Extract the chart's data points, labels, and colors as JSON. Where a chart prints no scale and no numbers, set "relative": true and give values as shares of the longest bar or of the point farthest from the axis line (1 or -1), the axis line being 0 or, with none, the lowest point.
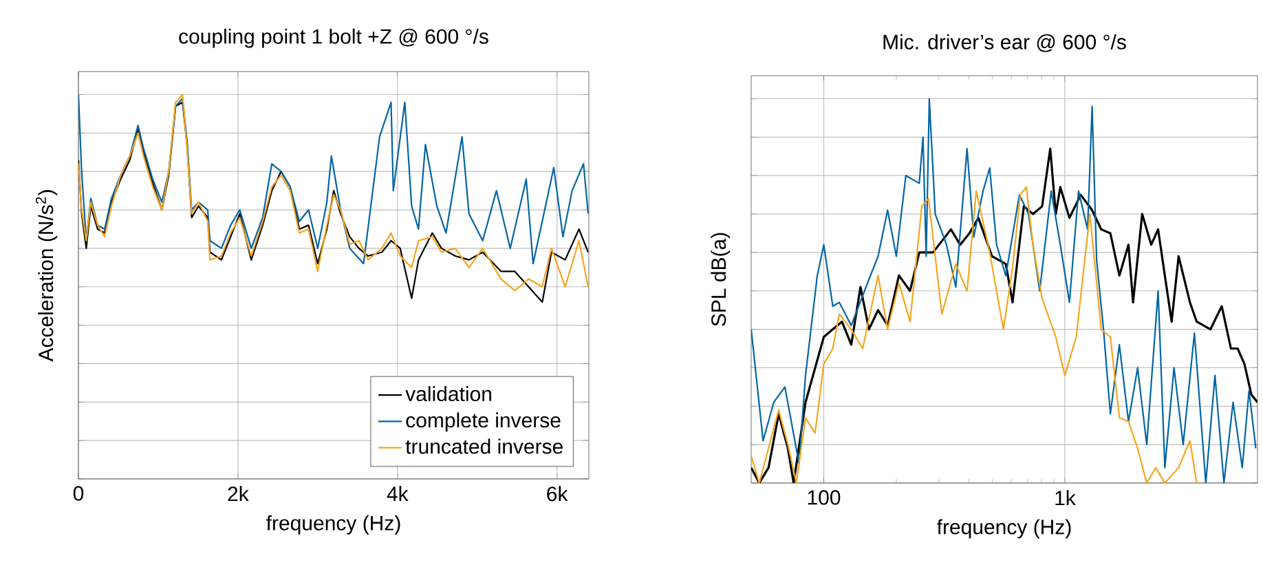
{
  "chart_data": [
    {
      "type": "line",
      "title": "coupling point 1 bolt +Z @ 600 °/s",
      "xlabel": "frequency (Hz)",
      "ylabel": "Acceleration (N/s$^{2}$)",
      "relative": true,
      "tick_labels": "x",
      "grid": true,
      "legend": "bottom right",
      "xlim": [
        0,
        6400
      ],
      "xticks": [
        0,
        {
          "value": 2000,
          "label": "2k"
        },
        {
          "value": 4000,
          "label": "4k"
        },
        {
          "value": 6000,
          "label": "6k"
        }
      ],
      "series": [
        {
          "name": "validation",
          "color": "#000000",
          "x": [
            0,
            40,
            98,
            155,
            241,
            328,
            414,
            529,
            644,
            747,
            816,
            931,
            1046,
            1132,
            1218,
            1305,
            1362,
            1420,
            1506,
            1621,
            1649,
            1793,
            1908,
            2023,
            2167,
            2310,
            2425,
            2540,
            2655,
            2770,
            2885,
            3000,
            3115,
            3201,
            3287,
            3402,
            3517,
            3632,
            3805,
            3920,
            4034,
            4178,
            4264,
            4437,
            4552,
            4724,
            4897,
            5069,
            5299,
            5471,
            5644,
            5816,
            5931,
            6103,
            6276,
            6391
          ],
          "values": [
            0.83,
            0.69,
            0.6,
            0.71,
            0.65,
            0.64,
            0.72,
            0.78,
            0.83,
            0.91,
            0.85,
            0.77,
            0.7,
            0.79,
            0.97,
            0.98,
            0.87,
            0.68,
            0.71,
            0.68,
            0.59,
            0.57,
            0.63,
            0.69,
            0.57,
            0.66,
            0.75,
            0.8,
            0.76,
            0.65,
            0.66,
            0.56,
            0.65,
            0.75,
            0.69,
            0.63,
            0.6,
            0.58,
            0.59,
            0.62,
            0.6,
            0.47,
            0.57,
            0.64,
            0.6,
            0.58,
            0.57,
            0.59,
            0.54,
            0.54,
            0.5,
            0.46,
            0.59,
            0.57,
            0.65,
            0.59
          ]
        },
        {
          "name": "complete inverse",
          "color": "#0065a4",
          "x": [
            0,
            40,
            98,
            155,
            241,
            328,
            414,
            529,
            644,
            747,
            816,
            931,
            1046,
            1132,
            1218,
            1305,
            1362,
            1420,
            1506,
            1621,
            1649,
            1793,
            1908,
            2023,
            2167,
            2310,
            2425,
            2540,
            2655,
            2770,
            2885,
            3000,
            3115,
            3172,
            3287,
            3402,
            3575,
            3776,
            3920,
            3948,
            4092,
            4178,
            4264,
            4351,
            4494,
            4609,
            4810,
            4897,
            5069,
            5241,
            5414,
            5615,
            5701,
            5960,
            6075,
            6190,
            6333,
            6391
          ],
          "values": [
            1.0,
            0.8,
            0.62,
            0.73,
            0.66,
            0.65,
            0.73,
            0.79,
            0.84,
            0.92,
            0.86,
            0.78,
            0.72,
            0.8,
            0.97,
            0.99,
            0.88,
            0.7,
            0.72,
            0.7,
            0.62,
            0.6,
            0.66,
            0.7,
            0.6,
            0.68,
            0.82,
            0.8,
            0.76,
            0.67,
            0.7,
            0.6,
            0.72,
            0.84,
            0.7,
            0.6,
            0.56,
            0.89,
            0.98,
            0.75,
            0.98,
            0.71,
            0.65,
            0.87,
            0.71,
            0.64,
            0.89,
            0.69,
            0.62,
            0.75,
            0.6,
            0.78,
            0.56,
            0.81,
            0.63,
            0.75,
            0.82,
            0.69
          ]
        },
        {
          "name": "truncated inverse",
          "color": "#f7a51e",
          "x": [
            0,
            40,
            98,
            155,
            241,
            328,
            414,
            529,
            644,
            747,
            816,
            931,
            1046,
            1132,
            1218,
            1305,
            1362,
            1420,
            1506,
            1621,
            1649,
            1793,
            1908,
            2023,
            2167,
            2310,
            2425,
            2540,
            2655,
            2770,
            2885,
            3000,
            3115,
            3201,
            3287,
            3402,
            3517,
            3632,
            3805,
            3920,
            4034,
            4178,
            4264,
            4437,
            4552,
            4724,
            4897,
            5069,
            5299,
            5471,
            5644,
            5816,
            5931,
            6103,
            6276,
            6391
          ],
          "values": [
            0.82,
            0.7,
            0.62,
            0.72,
            0.66,
            0.63,
            0.71,
            0.79,
            0.84,
            0.9,
            0.84,
            0.76,
            0.7,
            0.8,
            0.98,
            1.0,
            0.86,
            0.69,
            0.72,
            0.67,
            0.57,
            0.58,
            0.64,
            0.68,
            0.58,
            0.67,
            0.76,
            0.79,
            0.75,
            0.64,
            0.65,
            0.54,
            0.66,
            0.74,
            0.7,
            0.61,
            0.62,
            0.57,
            0.6,
            0.64,
            0.58,
            0.55,
            0.62,
            0.63,
            0.59,
            0.6,
            0.55,
            0.6,
            0.52,
            0.49,
            0.52,
            0.5,
            0.6,
            0.5,
            0.62,
            0.5
          ]
        }
      ]
    },
    {
      "type": "line",
      "title": "Mic. driver’s ear @ 600 °/s",
      "xlabel": "frequency (Hz)",
      "ylabel": "SPL dB(a)",
      "relative": true,
      "tick_labels": "x",
      "grid": true,
      "log": "x",
      "xlim": [
        50,
        6300
      ],
      "xticks": [
        100,
        {
          "value": 1000,
          "label": "1k"
        }
      ],
      "series": [
        {
          "color": "#000000",
          "x": [
            50,
            54,
            59,
            65,
            71,
            75,
            84,
            100,
            109,
            119,
            130,
            142,
            154,
            168,
            184,
            205,
            228,
            249,
            284,
            337,
            368,
            402,
            438,
            499,
            569,
            607,
            676,
            738,
            805,
            870,
            917,
            958,
            1045,
            1164,
            1298,
            1416,
            1545,
            1684,
            1837,
            1919,
            2094,
            2282,
            2438,
            2600,
            2774,
            2965,
            3304,
            3524,
            4018,
            4478,
            4887,
            5212,
            5559,
            5943,
            6300
          ],
          "values": [
            0.04,
            0,
            0.04,
            0.18,
            0.09,
            0,
            0.21,
            0.38,
            0.4,
            0.42,
            0.36,
            0.51,
            0.4,
            0.45,
            0.41,
            0.54,
            0.5,
            0.6,
            0.6,
            0.66,
            0.62,
            0.65,
            0.69,
            0.59,
            0.57,
            0.47,
            0.72,
            0.7,
            0.72,
            0.87,
            0.7,
            0.77,
            0.69,
            0.75,
            0.71,
            0.66,
            0.65,
            0.54,
            0.62,
            0.47,
            0.7,
            0.62,
            0.66,
            0.54,
            0.42,
            0.59,
            0.47,
            0.42,
            0.4,
            0.46,
            0.35,
            0.35,
            0.31,
            0.23,
            0.21
          ]
        },
        {
          "color": "#0065a4",
          "x": [
            50,
            56,
            62,
            69,
            79,
            84,
            94,
            100,
            109,
            116,
            130,
            154,
            168,
            184,
            200,
            219,
            249,
            258,
            266,
            274,
            290,
            323,
            353,
            393,
            419,
            458,
            488,
            521,
            569,
            648,
            707,
            787,
            878,
            958,
            1045,
            1140,
            1243,
            1298,
            1355,
            1447,
            1545,
            1684,
            1837,
            2004,
            2187,
            2438,
            2600,
            2838,
            3097,
            3449,
            3845,
            4197,
            4571,
            4989,
            5445,
            5808,
            6199
          ],
          "values": [
            0.4,
            0.11,
            0.21,
            0.25,
            0.05,
            0.28,
            0.54,
            0.62,
            0.46,
            0.47,
            0.41,
            0.53,
            0.59,
            0.71,
            0.59,
            0.8,
            0.78,
            0.9,
            0.59,
            1.0,
            0.7,
            0.62,
            0.51,
            0.87,
            0.64,
            0.76,
            0.82,
            0.62,
            0.54,
            0.75,
            0.7,
            0.5,
            0.76,
            0.62,
            0.47,
            0.76,
            0.66,
            0.98,
            0.58,
            0.4,
            0.18,
            0.36,
            0.16,
            0.3,
            0.1,
            0.5,
            0.04,
            0.3,
            0.1,
            0.39,
            0,
            0.28,
            0,
            0.21,
            0.04,
            0.24,
            0.09
          ]
        },
        {
          "color": "#f7a51e",
          "x": [
            50,
            54,
            65,
            71,
            77,
            84,
            92,
            100,
            109,
            116,
            130,
            145,
            168,
            184,
            205,
            228,
            255,
            272,
            309,
            353,
            393,
            429,
            488,
            556,
            607,
            653,
            692,
            738,
            805,
            917,
            1000,
            1115,
            1270,
            1416,
            1545,
            1684,
            1837,
            2004,
            2187,
            2384,
            2600,
            2965,
            3304,
            3524
          ],
          "values": [
            0.07,
            0,
            0.19,
            0.1,
            0,
            0.17,
            0.13,
            0.31,
            0.35,
            0.44,
            0.4,
            0.35,
            0.54,
            0.4,
            0.52,
            0.42,
            0.72,
            0.74,
            0.44,
            0.57,
            0.5,
            0.76,
            0.6,
            0.4,
            0.56,
            0.75,
            0.77,
            0.62,
            0.48,
            0.38,
            0.28,
            0.38,
            0.7,
            0.4,
            0.38,
            0.17,
            0.16,
            0.09,
            0,
            0.04,
            0,
            0.04,
            0.11,
            0
          ]
        }
      ]
    }
  ]
}
